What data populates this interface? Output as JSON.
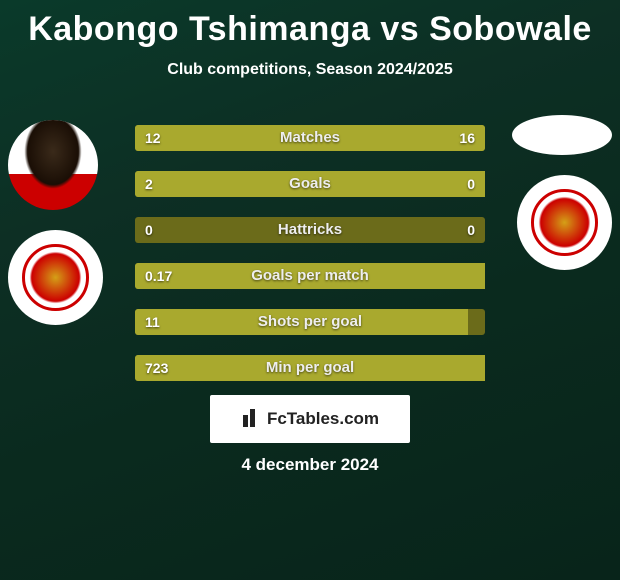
{
  "title": "Kabongo Tshimanga vs Sobowale",
  "subtitle": "Club competitions, Season 2024/2025",
  "date": "4 december 2024",
  "branding": "FcTables.com",
  "colors": {
    "bar_full": "#a9a92e",
    "bar_empty": "#6b6b1a",
    "title_color": "#ffffff"
  },
  "stats": [
    {
      "label": "Matches",
      "left_value": "12",
      "right_value": "16",
      "left_pct": 43,
      "right_pct": 57
    },
    {
      "label": "Goals",
      "left_value": "2",
      "right_value": "0",
      "left_pct": 100,
      "right_pct": 0
    },
    {
      "label": "Hattricks",
      "left_value": "0",
      "right_value": "0",
      "left_pct": 0,
      "right_pct": 0
    },
    {
      "label": "Goals per match",
      "left_value": "0.17",
      "right_value": "",
      "left_pct": 100,
      "right_pct": 0
    },
    {
      "label": "Shots per goal",
      "left_value": "11",
      "right_value": "",
      "left_pct": 95,
      "right_pct": 0
    },
    {
      "label": "Min per goal",
      "left_value": "723",
      "right_value": "",
      "left_pct": 100,
      "right_pct": 0
    }
  ]
}
